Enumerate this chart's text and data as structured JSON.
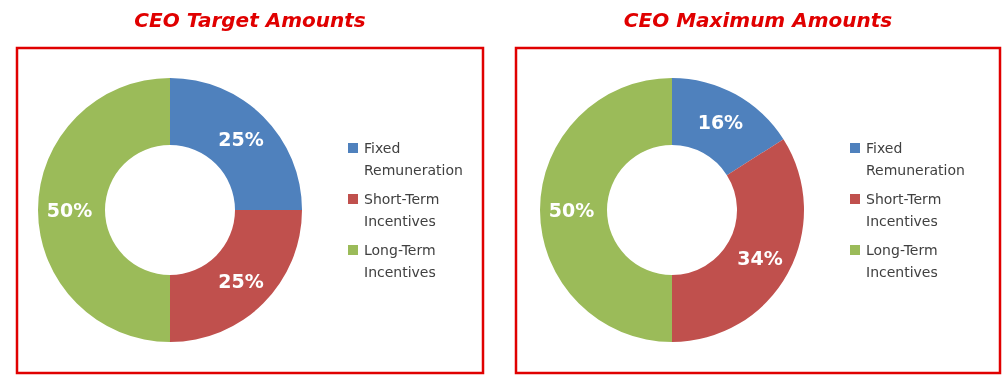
{
  "chart_data": [
    {
      "type": "donut",
      "title": "CEO Target Amounts",
      "categories": [
        "Fixed Remuneration",
        "Short-Term Incentives",
        "Long-Term Incentives"
      ],
      "values": [
        25,
        25,
        50
      ],
      "colors": [
        "#4f81bd",
        "#c0504d",
        "#9bbb59"
      ],
      "value_labels": [
        "25%",
        "25%",
        "50%"
      ],
      "legend": "right"
    },
    {
      "type": "donut",
      "title": "CEO Maximum Amounts",
      "categories": [
        "Fixed Remuneration",
        "Short-Term Incentives",
        "Long-Term Incentives"
      ],
      "values": [
        16,
        34,
        50
      ],
      "colors": [
        "#4f81bd",
        "#c0504d",
        "#9bbb59"
      ],
      "value_labels": [
        "16%",
        "34%",
        "50%"
      ],
      "legend": "right"
    }
  ]
}
